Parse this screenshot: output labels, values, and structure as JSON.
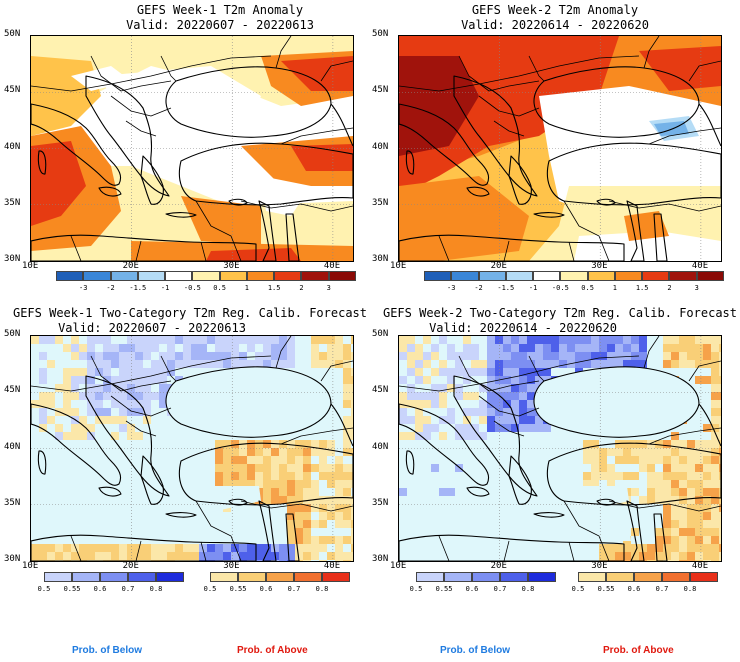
{
  "panels": [
    {
      "title": "GEFS Week-1 T2m Anomaly",
      "valid": "Valid: 20220607 - 20220613",
      "kind": "anom",
      "week": 1
    },
    {
      "title": "GEFS Week-2 T2m Anomaly",
      "valid": "Valid: 20220614 - 20220620",
      "kind": "anom",
      "week": 2
    },
    {
      "title": "GEFS Week-1 Two-Category T2m Reg. Calib. Forecast",
      "valid": "Valid: 20220607 - 20220613",
      "kind": "prob",
      "week": 1
    },
    {
      "title": "GEFS Week-2 Two-Category T2m Reg. Calib. Forecast",
      "valid": "Valid: 20220614 - 20220620",
      "kind": "prob",
      "week": 2
    }
  ],
  "axes": {
    "lat_labels": [
      "50N",
      "45N",
      "40N",
      "35N",
      "30N"
    ],
    "lon_labels": [
      "10E",
      "20E",
      "30E",
      "40E"
    ]
  },
  "anomaly_colorbar": {
    "ticks": [
      "-3",
      "-2",
      "-1.5",
      "-1",
      "-0.5",
      "0.5",
      "1",
      "1.5",
      "2",
      "3"
    ],
    "colors": [
      "#1f5fb8",
      "#3a86d8",
      "#74b2e8",
      "#b5dcf6",
      "#ffffff",
      "#fff2b0",
      "#ffc34a",
      "#f88a20",
      "#e63b12",
      "#a0130c"
    ]
  },
  "below_colorbar": {
    "ticks": [
      "0.5",
      "0.55",
      "0.6",
      "0.7",
      "0.8"
    ],
    "colors": [
      "#c9d4fb",
      "#a5b5f7",
      "#7d8ff2",
      "#4e60ea",
      "#1d2bdc"
    ],
    "label": "Prob. of Below",
    "label_color": "#1f7be0"
  },
  "above_colorbar": {
    "ticks": [
      "0.5",
      "0.55",
      "0.6",
      "0.7",
      "0.8"
    ],
    "colors": [
      "#fbe7a9",
      "#f9cf77",
      "#f6a24a",
      "#f17030",
      "#e8301a"
    ],
    "label": "Prob. of Above",
    "label_color": "#e0190f"
  }
}
